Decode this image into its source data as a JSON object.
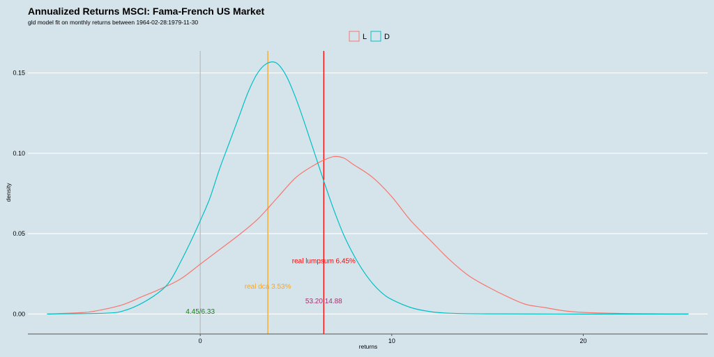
{
  "chart_data": {
    "type": "line",
    "title": "Annualized Returns MSCI: Fama-French US Market",
    "subtitle": "gld model fit on monthly returns between 1964-02-28:1979-11-30",
    "xlabel": "returns",
    "ylabel": "density",
    "xlim": [
      -9.0,
      26.5
    ],
    "ylim": [
      -0.012,
      0.165
    ],
    "xticks": [
      0,
      10,
      20
    ],
    "xtick_labels": [
      "0",
      "10",
      "20"
    ],
    "yticks": [
      0.0,
      0.05,
      0.1,
      0.15
    ],
    "ytick_labels": [
      "0.00",
      "0.05",
      "0.10",
      "0.15"
    ],
    "grid": "horizontal",
    "legend": {
      "placement": "top-center",
      "entries": [
        {
          "label": "L",
          "color": "#f8766d"
        },
        {
          "label": "D",
          "color": "#00bfc4"
        }
      ]
    },
    "series": [
      {
        "name": "L",
        "color": "#f8766d",
        "x": [
          -8,
          -6,
          -5,
          -4,
          -3,
          -2,
          -1,
          0,
          1,
          2,
          3,
          4,
          5,
          6,
          6.5,
          7,
          7.5,
          8,
          9,
          10,
          11,
          12,
          13,
          14,
          15,
          16,
          17,
          18,
          19,
          20,
          22,
          24,
          25.5
        ],
        "y": [
          0.0,
          0.001,
          0.003,
          0.006,
          0.011,
          0.016,
          0.022,
          0.031,
          0.04,
          0.049,
          0.059,
          0.072,
          0.085,
          0.093,
          0.096,
          0.098,
          0.097,
          0.093,
          0.085,
          0.073,
          0.058,
          0.046,
          0.034,
          0.024,
          0.017,
          0.011,
          0.006,
          0.004,
          0.002,
          0.001,
          0.0003,
          0.0001,
          0.0
        ]
      },
      {
        "name": "D",
        "color": "#00bfc4",
        "x": [
          -8,
          -5,
          -4,
          -3,
          -2,
          -1.5,
          -1,
          -0.5,
          0,
          0.5,
          1,
          1.5,
          2,
          2.5,
          3,
          3.5,
          4,
          4.5,
          5,
          5.5,
          6,
          6.5,
          7,
          7.5,
          8,
          8.5,
          9,
          9.5,
          10,
          11,
          12,
          13,
          15,
          20,
          25.5
        ],
        "y": [
          0.0,
          0.0005,
          0.002,
          0.007,
          0.015,
          0.022,
          0.033,
          0.045,
          0.058,
          0.072,
          0.09,
          0.106,
          0.122,
          0.138,
          0.15,
          0.156,
          0.156,
          0.148,
          0.134,
          0.117,
          0.099,
          0.081,
          0.064,
          0.049,
          0.037,
          0.027,
          0.019,
          0.013,
          0.009,
          0.004,
          0.0015,
          0.0005,
          0.0001,
          0.0,
          0.0
        ]
      }
    ],
    "vlines": [
      {
        "x": 0,
        "color": "#bdbdbd"
      },
      {
        "x": 3.53,
        "color": "#f5a623"
      },
      {
        "x": 6.45,
        "color": "#ff0000"
      }
    ],
    "annotations": [
      {
        "text": "real lumpsum 6.45%",
        "x": 6.45,
        "y": 0.033,
        "color": "#ff0000"
      },
      {
        "text": "real dca 3.53%",
        "x": 3.53,
        "y": 0.017,
        "color": "#f5a623"
      },
      {
        "text": "53.20:14.88",
        "x": 6.45,
        "y": 0.008,
        "color": "#a0306e"
      },
      {
        "text": "4.45/6.33",
        "x": 0,
        "y": 0.0015,
        "color": "#1a7a1a"
      }
    ]
  }
}
